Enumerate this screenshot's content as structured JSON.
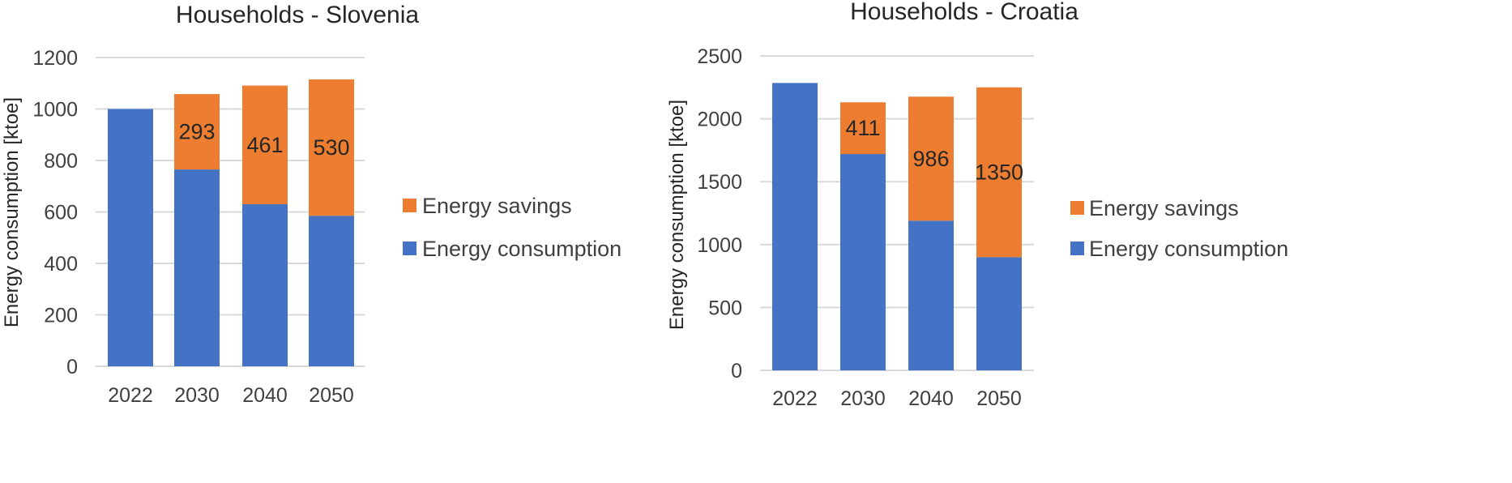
{
  "colors": {
    "energy_consumption": "#4472c4",
    "energy_savings": "#ed7d31",
    "grid": "#d9d9d9"
  },
  "chart_data": [
    {
      "type": "bar",
      "stacked": true,
      "title": "Households - Slovenia",
      "ylabel": "Energy consumption [ktoe]",
      "xlabel": "",
      "categories": [
        "2022",
        "2030",
        "2040",
        "2050"
      ],
      "ylim": [
        0,
        1200
      ],
      "yticks": [
        "0",
        "200",
        "400",
        "600",
        "800",
        "1000",
        "1200"
      ],
      "series": [
        {
          "name": "Energy consumption",
          "values": [
            1000,
            765,
            630,
            585
          ]
        },
        {
          "name": "Energy savings",
          "values": [
            0,
            293,
            461,
            530
          ]
        }
      ],
      "data_labels": [
        {
          "category": "2030",
          "text": "293"
        },
        {
          "category": "2040",
          "text": "461"
        },
        {
          "category": "2050",
          "text": "530"
        }
      ],
      "legend": [
        "Energy savings",
        "Energy consumption"
      ],
      "legend_position": "right",
      "grid": true
    },
    {
      "type": "bar",
      "stacked": true,
      "title": "Households - Croatia",
      "ylabel": "Energy consumption [ktoe]",
      "xlabel": "",
      "categories": [
        "2022",
        "2030",
        "2040",
        "2050"
      ],
      "ylim": [
        0,
        2500
      ],
      "yticks": [
        "0",
        "500",
        "1000",
        "1500",
        "2000",
        "2500"
      ],
      "series": [
        {
          "name": "Energy consumption",
          "values": [
            2285,
            1720,
            1190,
            900
          ]
        },
        {
          "name": "Energy savings",
          "values": [
            0,
            411,
            986,
            1350
          ]
        }
      ],
      "data_labels": [
        {
          "category": "2030",
          "text": "411"
        },
        {
          "category": "2040",
          "text": "986"
        },
        {
          "category": "2050",
          "text": "1350"
        }
      ],
      "legend": [
        "Energy savings",
        "Energy consumption"
      ],
      "legend_position": "right",
      "grid": true
    }
  ]
}
